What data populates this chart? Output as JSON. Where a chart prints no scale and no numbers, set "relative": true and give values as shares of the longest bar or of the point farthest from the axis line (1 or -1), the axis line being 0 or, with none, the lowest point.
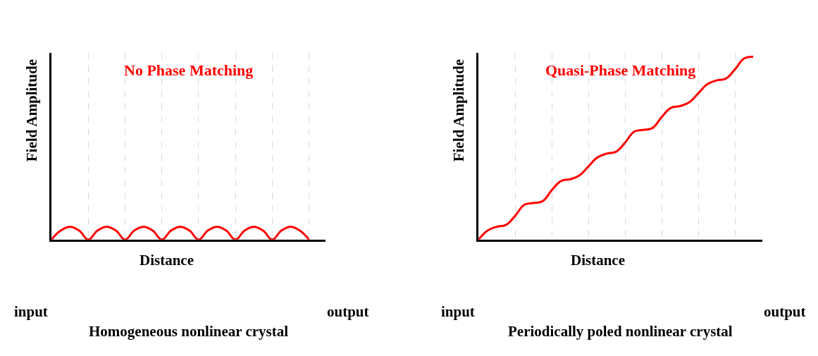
{
  "chart_data": [
    {
      "type": "line",
      "title": "No Phase Matching",
      "xlabel": "Distance",
      "ylabel": "Field Amplitude",
      "relative": true,
      "grid": "x",
      "categories": [
        null,
        null,
        null,
        null,
        null,
        null,
        null,
        null,
        null,
        null,
        null,
        null,
        null,
        null,
        null,
        null,
        null,
        null,
        null,
        null,
        null,
        null,
        null,
        null,
        null,
        null,
        null,
        null,
        null
      ],
      "series": [
        {
          "color": "#ff0000",
          "values": [
            0,
            0.71,
            1,
            0.71,
            0,
            0.71,
            1,
            0.71,
            0,
            0.71,
            1,
            0.71,
            0,
            0.71,
            1,
            0.71,
            0,
            0.71,
            1,
            0.71,
            0,
            0.71,
            1,
            0.71,
            0,
            0.71,
            1,
            0.71,
            0
          ]
        }
      ],
      "annotations": [
        "input",
        "output",
        "Homogeneous nonlinear crystal"
      ]
    },
    {
      "type": "line",
      "title": "Quasi-Phase Matching",
      "xlabel": "Distance",
      "ylabel": "Field Amplitude",
      "relative": true,
      "grid": "x",
      "categories": [
        null,
        null,
        null,
        null,
        null,
        null,
        null,
        null,
        null,
        null,
        null,
        null,
        null,
        null,
        null,
        null,
        null,
        null,
        null,
        null,
        null,
        null,
        null,
        null,
        null,
        null,
        null,
        null,
        null,
        null,
        null
      ],
      "series": [
        {
          "color": "#ff0000",
          "values": [
            0,
            0.05,
            0.07,
            0.08,
            0.13,
            0.19,
            0.2,
            0.21,
            0.27,
            0.32,
            0.33,
            0.35,
            0.4,
            0.45,
            0.47,
            0.48,
            0.53,
            0.59,
            0.6,
            0.61,
            0.67,
            0.72,
            0.73,
            0.75,
            0.8,
            0.85,
            0.87,
            0.88,
            0.93,
            0.99,
            1
          ]
        }
      ],
      "annotations": [
        "input",
        "output",
        "Periodically poled nonlinear crystal"
      ]
    }
  ]
}
